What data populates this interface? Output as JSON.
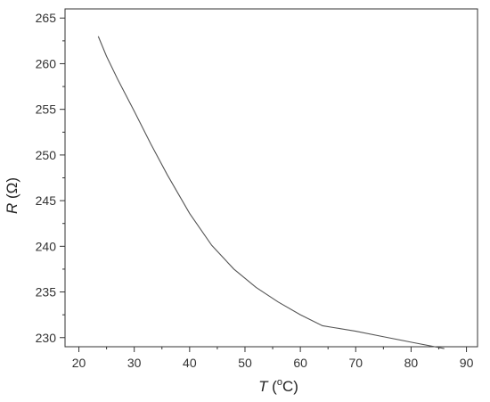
{
  "chart_data": {
    "type": "line",
    "xlabel": {
      "variable": "T",
      "unit_open": " (",
      "unit_sup": "o",
      "unit_rest": "C)"
    },
    "ylabel": {
      "variable": "R",
      "unit": " (Ω)"
    },
    "xlim": [
      17.5,
      92
    ],
    "ylim": [
      229,
      266
    ],
    "xticks": [
      20,
      30,
      40,
      50,
      60,
      70,
      80,
      90
    ],
    "yticks": [
      230,
      235,
      240,
      245,
      250,
      255,
      260,
      265
    ],
    "x_minor_step": 5,
    "y_minor_step": 2.5,
    "grid": false,
    "series": [
      {
        "color": "#555555",
        "x": [
          23.5,
          25,
          27,
          30,
          33,
          36,
          40,
          44,
          48,
          52,
          56,
          60,
          64,
          66,
          70,
          75,
          80,
          86
        ],
        "y": [
          263.0,
          260.8,
          258.3,
          254.8,
          251.2,
          247.8,
          243.6,
          240.1,
          237.5,
          235.5,
          233.9,
          232.5,
          231.3,
          231.1,
          230.7,
          230.1,
          229.5,
          228.8
        ]
      }
    ]
  }
}
